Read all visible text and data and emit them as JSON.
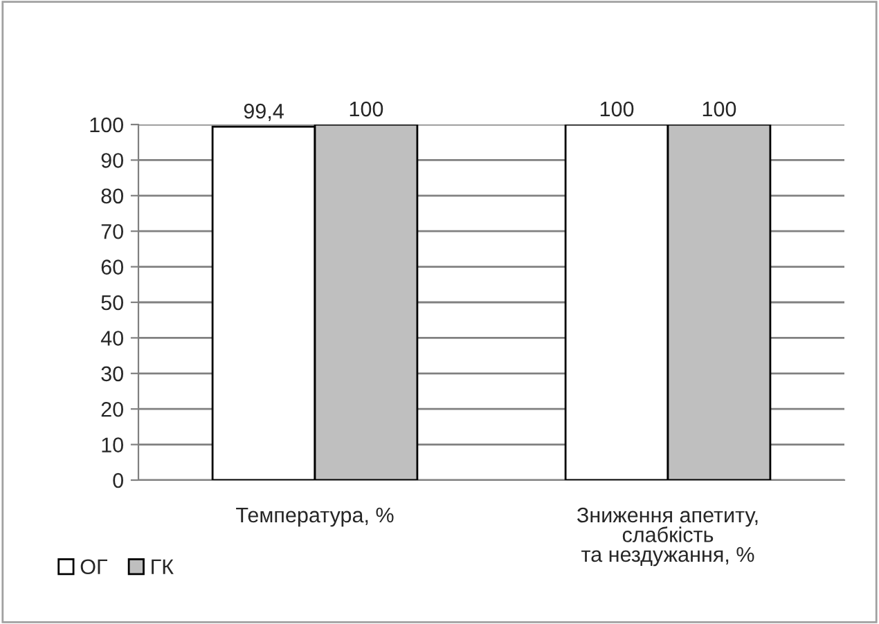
{
  "chart_data": {
    "type": "bar",
    "categories": [
      "Температура, %",
      "Зниження апетиту,\nслабкість\nта нездужання, %"
    ],
    "series": [
      {
        "name": "ОГ",
        "color": "#ffffff",
        "values": [
          99.4,
          100
        ],
        "value_labels": [
          "99,4",
          "100"
        ]
      },
      {
        "name": "ГК",
        "color": "#bfbfbf",
        "values": [
          100,
          100
        ],
        "value_labels": [
          "100",
          "100"
        ]
      }
    ],
    "ylim": [
      0,
      100
    ],
    "yticks": [
      0,
      10,
      20,
      30,
      40,
      50,
      60,
      70,
      80,
      90,
      100
    ],
    "grid": "y",
    "legend": "bottom left"
  }
}
